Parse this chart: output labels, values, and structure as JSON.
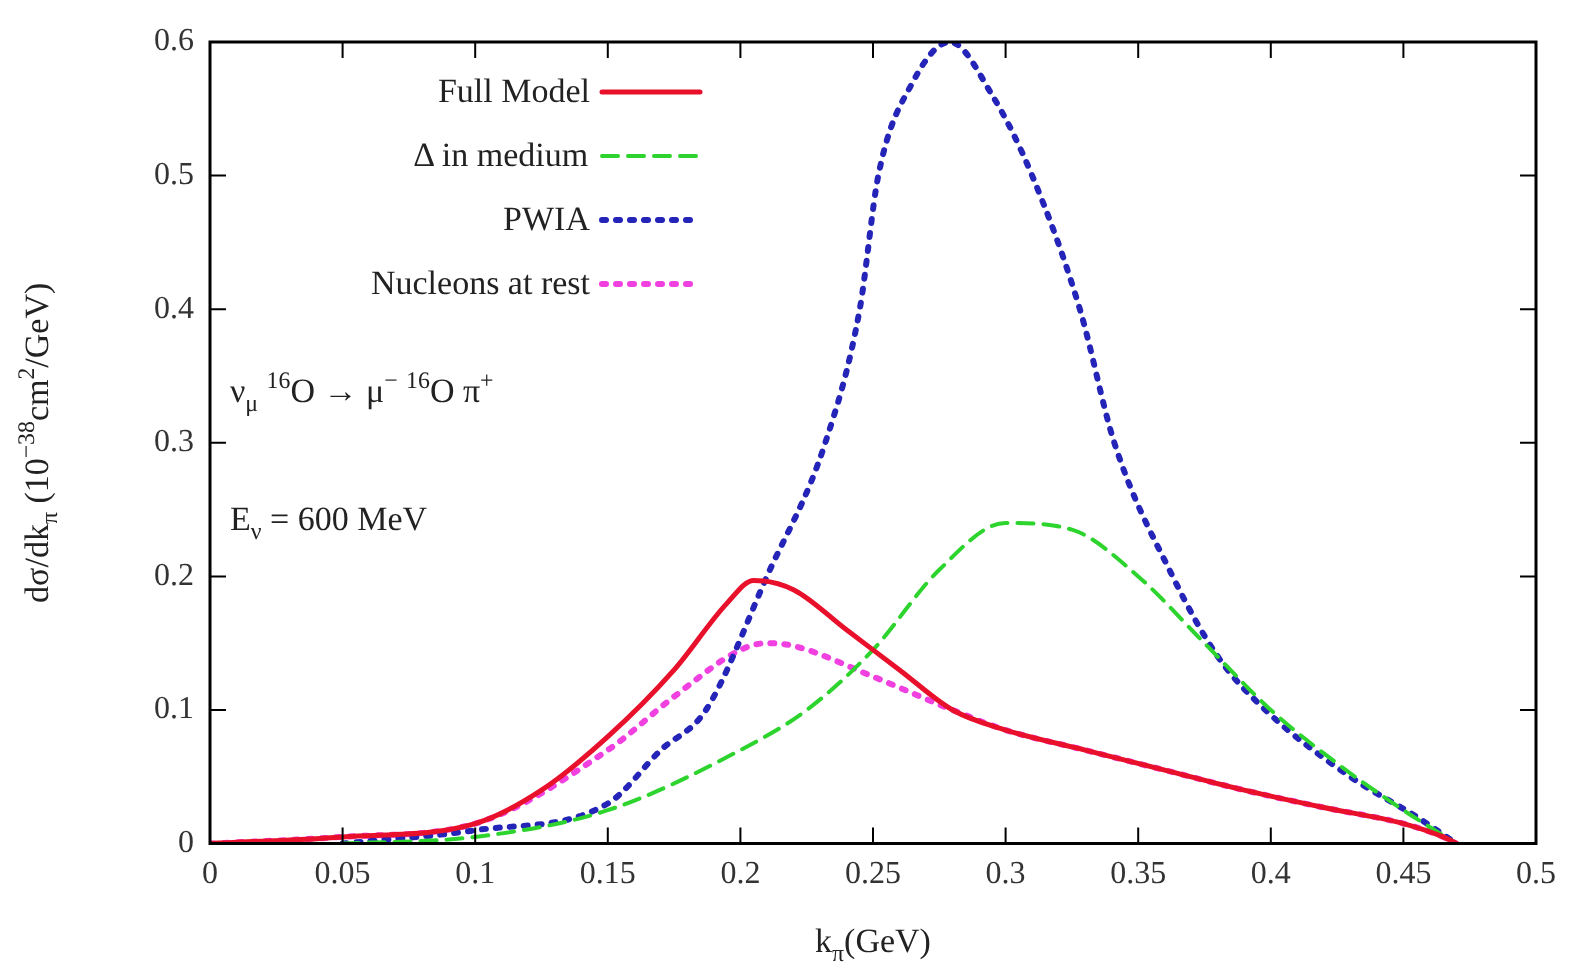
{
  "chart_data": {
    "type": "line",
    "xlabel": "k$_{π}$(GeV)",
    "ylabel": "dσ/dk$_{π}$ (10$^{−38}$cm$^{2}$/GeV)",
    "xlim": [
      0,
      0.5
    ],
    "xticks": [
      0,
      0.05,
      0.1,
      0.15,
      0.2,
      0.25,
      0.3,
      0.35,
      0.4,
      0.45,
      0.5
    ],
    "ylim": [
      0,
      0.6
    ],
    "yticks": [
      0,
      0.1,
      0.2,
      0.3,
      0.4,
      0.5,
      0.6
    ],
    "grid": false,
    "legend": "top left",
    "marker": "none",
    "annotations": [
      "ν$_{μ}$ $^{16}$O → μ$^{−}$ $^{16}$O π$^{+}$",
      "E$_{ν}$ = 600 MeV"
    ],
    "series": [
      {
        "name": "Full Model",
        "color": "#e8102a",
        "line_style": "solid",
        "x": [
          0,
          0.05,
          0.1,
          0.125,
          0.15,
          0.175,
          0.195,
          0.205,
          0.22,
          0.24,
          0.26,
          0.28,
          0.3,
          0.33,
          0.36,
          0.39,
          0.42,
          0.45,
          0.465,
          0.47
        ],
        "values": [
          0,
          0.005,
          0.015,
          0.04,
          0.08,
          0.13,
          0.18,
          0.197,
          0.19,
          0.16,
          0.13,
          0.1,
          0.085,
          0.07,
          0.055,
          0.04,
          0.027,
          0.015,
          0.005,
          0
        ]
      },
      {
        "name": "Δ in medium",
        "color": "#2ed42e",
        "line_style": "dashed",
        "x": [
          0.05,
          0.1,
          0.15,
          0.2,
          0.225,
          0.25,
          0.275,
          0.3,
          0.325,
          0.35,
          0.375,
          0.4,
          0.425,
          0.45,
          0.47
        ],
        "values": [
          0,
          0.005,
          0.025,
          0.07,
          0.1,
          0.145,
          0.205,
          0.24,
          0.235,
          0.2,
          0.15,
          0.1,
          0.06,
          0.025,
          0
        ]
      },
      {
        "name": "PWIA",
        "color": "#2424b8",
        "line_style": "dotted",
        "x": [
          0.05,
          0.1,
          0.15,
          0.17,
          0.187,
          0.21,
          0.232,
          0.245,
          0.252,
          0.265,
          0.279,
          0.295,
          0.31,
          0.328,
          0.341,
          0.363,
          0.38,
          0.398,
          0.43,
          0.455,
          0.47
        ],
        "values": [
          0,
          0.01,
          0.03,
          0.07,
          0.1,
          0.2,
          0.3,
          0.4,
          0.5,
          0.57,
          0.6,
          0.56,
          0.5,
          0.4,
          0.3,
          0.2,
          0.14,
          0.1,
          0.05,
          0.02,
          0
        ]
      },
      {
        "name": "Nucleons at rest",
        "color": "#f040e0",
        "line_style": "dotted",
        "x": [
          0,
          0.05,
          0.1,
          0.15,
          0.175,
          0.2,
          0.21,
          0.22,
          0.25,
          0.28,
          0.3,
          0.33,
          0.36,
          0.39,
          0.42,
          0.45,
          0.465,
          0.47
        ],
        "values": [
          0,
          0.005,
          0.015,
          0.07,
          0.11,
          0.145,
          0.15,
          0.148,
          0.125,
          0.1,
          0.085,
          0.07,
          0.055,
          0.04,
          0.027,
          0.015,
          0.005,
          0
        ]
      }
    ]
  }
}
